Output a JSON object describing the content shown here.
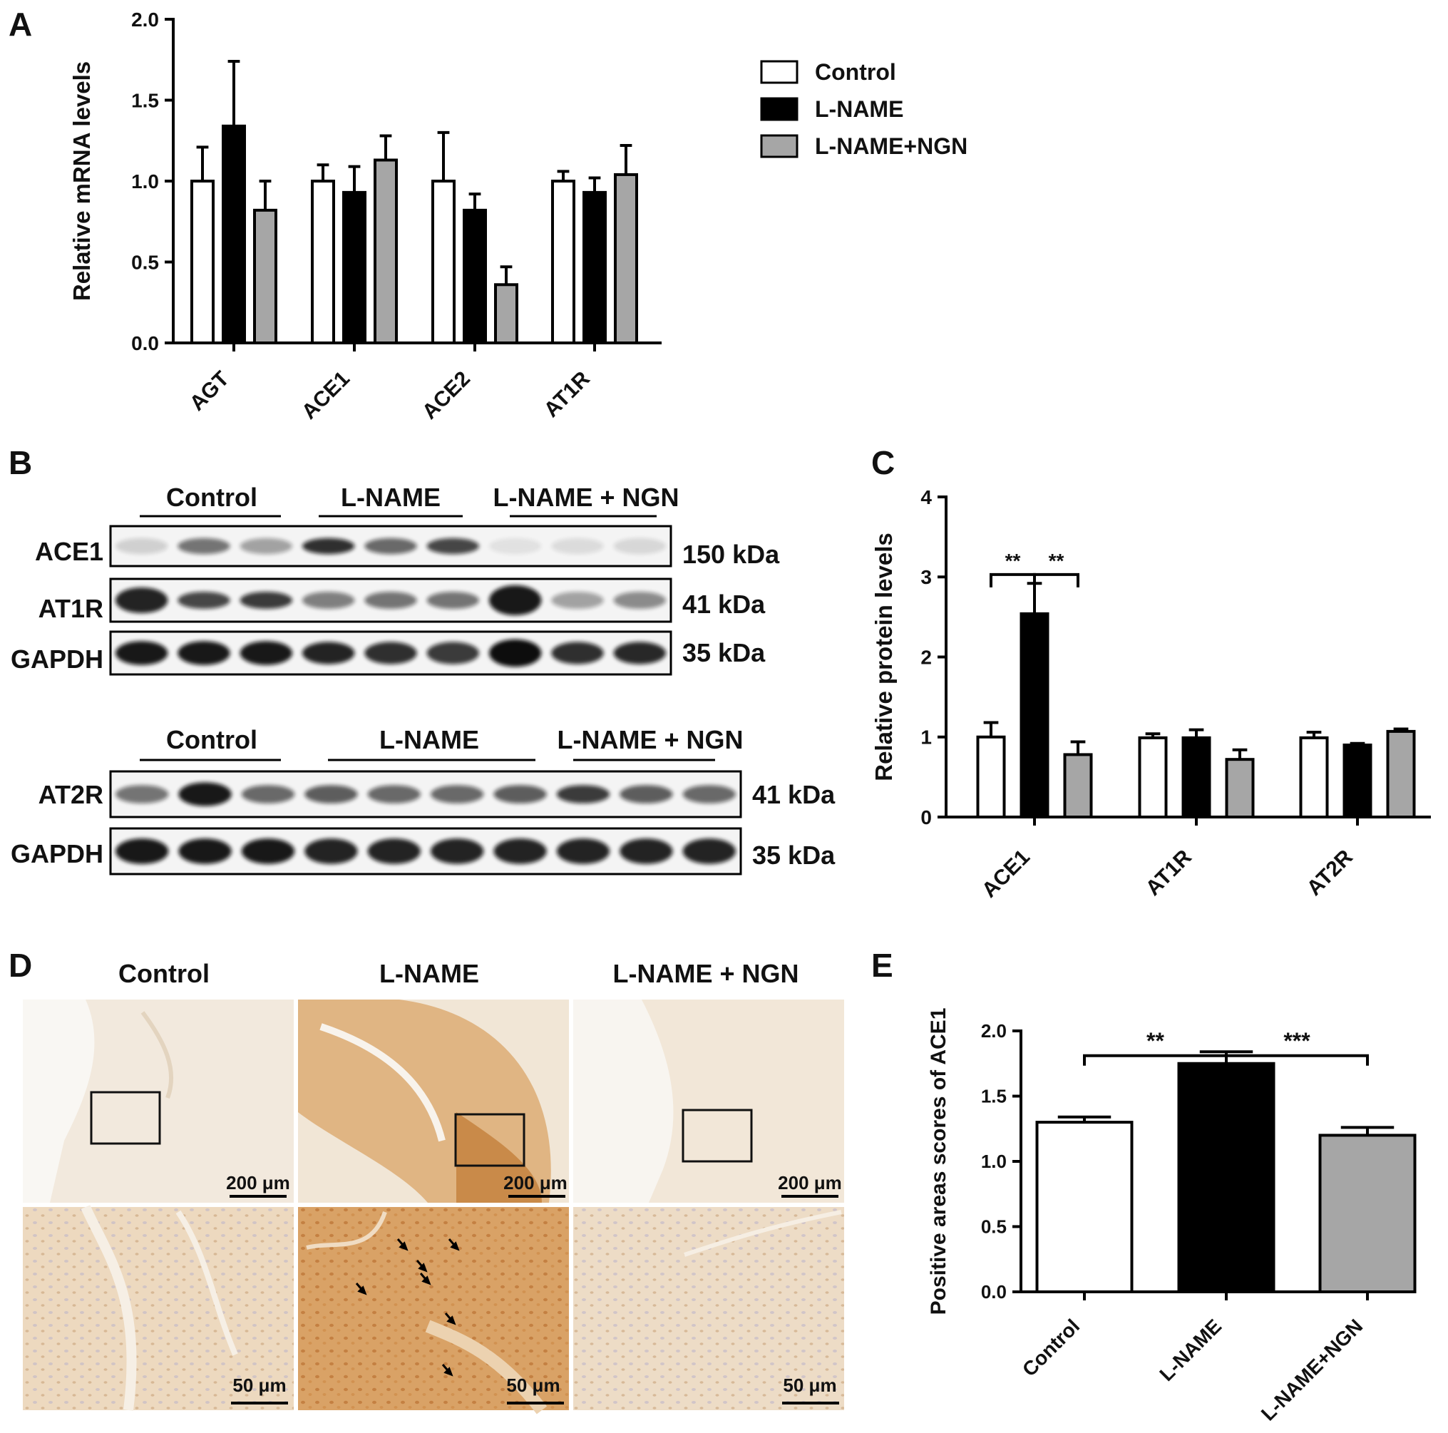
{
  "panels": {
    "a": {
      "letter": "A"
    },
    "b": {
      "letter": "B"
    },
    "c": {
      "letter": "C"
    },
    "d": {
      "letter": "D"
    },
    "e": {
      "letter": "E"
    }
  },
  "legend": {
    "control": "Control",
    "lname": "L-NAME",
    "lname_ngn": "L-NAME+NGN"
  },
  "colors": {
    "control": "#ffffff",
    "lname": "#000000",
    "lname_ngn": "#a6a6a6",
    "stain_light": "#efdfca",
    "stain_dark": "#d49a55"
  },
  "blots": {
    "top": {
      "groups": [
        "Control",
        "L-NAME",
        "L-NAME + NGN"
      ],
      "rows": [
        {
          "name": "ACE1",
          "kda": "150 kDa"
        },
        {
          "name": "AT1R",
          "kda": "41 kDa"
        },
        {
          "name": "GAPDH",
          "kda": "35 kDa"
        }
      ]
    },
    "bottom": {
      "groups": [
        "Control",
        "L-NAME",
        "L-NAME + NGN"
      ],
      "rows": [
        {
          "name": "AT2R",
          "kda": "41 kDa"
        },
        {
          "name": "GAPDH",
          "kda": "35 kDa"
        }
      ]
    }
  },
  "histology": {
    "columns": [
      "Control",
      "L-NAME",
      "L-NAME + NGN"
    ],
    "scale_top": "200 μm",
    "scale_bottom": "50 μm"
  },
  "chart_data": [
    {
      "panel": "A",
      "type": "bar",
      "ylabel": "Relative mRNA levels",
      "ylim": [
        0,
        2.0
      ],
      "yticks": [
        "0.0",
        "0.5",
        "1.0",
        "1.5",
        "2.0"
      ],
      "categories": [
        "AGT",
        "ACE1",
        "ACE2",
        "AT1R"
      ],
      "series": [
        {
          "name": "Control",
          "values": [
            1.0,
            1.0,
            1.0,
            1.0
          ],
          "errors": [
            0.21,
            0.1,
            0.3,
            0.06
          ]
        },
        {
          "name": "L-NAME",
          "values": [
            1.34,
            0.93,
            0.82,
            0.93
          ],
          "errors": [
            0.4,
            0.16,
            0.1,
            0.09
          ]
        },
        {
          "name": "L-NAME+NGN",
          "values": [
            0.82,
            1.13,
            0.36,
            1.04
          ],
          "errors": [
            0.18,
            0.15,
            0.11,
            0.18
          ]
        }
      ],
      "legend_position": "top-right"
    },
    {
      "panel": "C",
      "type": "bar",
      "ylabel": "Relative protein levels",
      "ylim": [
        0,
        4
      ],
      "yticks": [
        "0",
        "1",
        "2",
        "3",
        "4"
      ],
      "categories": [
        "ACE1",
        "AT1R",
        "AT2R"
      ],
      "series": [
        {
          "name": "Control",
          "values": [
            1.0,
            0.99,
            0.99
          ],
          "errors": [
            0.18,
            0.05,
            0.07
          ]
        },
        {
          "name": "L-NAME",
          "values": [
            2.54,
            0.99,
            0.9
          ],
          "errors": [
            0.38,
            0.1,
            0.02
          ]
        },
        {
          "name": "L-NAME+NGN",
          "values": [
            0.78,
            0.72,
            1.07
          ],
          "errors": [
            0.16,
            0.12,
            0.03
          ]
        }
      ],
      "significance": [
        {
          "between": [
            "Control",
            "L-NAME"
          ],
          "category": "ACE1",
          "label": "**"
        },
        {
          "between": [
            "L-NAME",
            "L-NAME+NGN"
          ],
          "category": "ACE1",
          "label": "**"
        }
      ]
    },
    {
      "panel": "E",
      "type": "bar",
      "ylabel": "Positive areas scores of ACE1",
      "ylim": [
        0,
        2.0
      ],
      "yticks": [
        "0.0",
        "0.5",
        "1.0",
        "1.5",
        "2.0"
      ],
      "categories": [
        "Control",
        "L-NAME",
        "L-NAME+NGN"
      ],
      "values": [
        1.3,
        1.75,
        1.2
      ],
      "errors": [
        0.04,
        0.09,
        0.06
      ],
      "significance": [
        {
          "between": [
            "Control",
            "L-NAME"
          ],
          "label": "**"
        },
        {
          "between": [
            "L-NAME",
            "L-NAME+NGN"
          ],
          "label": "***"
        }
      ]
    }
  ]
}
